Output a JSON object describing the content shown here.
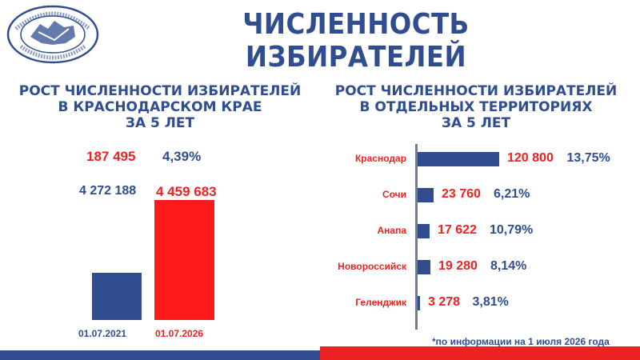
{
  "header": {
    "title": "ЧИСЛЕННОСТЬ ИЗБИРАТЕЛЕЙ",
    "logo_text_top": "ИЗБИРАТЕЛЬНАЯ КОМИССИЯ КРАСНОДАРСКОГО КРАЯ",
    "logo_text_bottom": "РОССИЙСКАЯ ФЕДЕРАЦИЯ"
  },
  "left_panel": {
    "subtitle": [
      "РОСТ ЧИСЛЕННОСТИ ИЗБИРАТЕЛЕЙ",
      "В КРАСНОДАРСКОМ КРАЕ",
      "ЗА 5 ЛЕТ"
    ],
    "growth_value": "187 495",
    "growth_percent": "4,39%",
    "value_2021": "4 272 188",
    "value_2026": "4 459 683",
    "date_2021": "01.07.2021",
    "date_2026": "01.07.2026"
  },
  "right_panel": {
    "subtitle": [
      "РОСТ ЧИСЛЕННОСТИ ИЗБИРАТЕЛЕЙ",
      "В ОТДЕЛЬНЫХ ТЕРРИТОРИЯХ",
      "ЗА 5 ЛЕТ"
    ]
  },
  "footnote": "*по информации на 1 июля 2026 года",
  "colors": {
    "blue": "#2f4d8f",
    "red": "#ee2222"
  },
  "chart_data": [
    {
      "type": "bar",
      "title": "РОСТ ЧИСЛЕННОСТИ ИЗБИРАТЕЛЕЙ В КРАСНОДАРСКОМ КРАЕ ЗА 5 ЛЕТ",
      "categories": [
        "01.07.2021",
        "01.07.2026"
      ],
      "values": [
        4272188,
        4459683
      ],
      "annotation": {
        "growth": 187495,
        "growth_percent": "4,39%"
      }
    },
    {
      "type": "bar",
      "orientation": "horizontal",
      "title": "РОСТ ЧИСЛЕННОСТИ ИЗБИРАТЕЛЕЙ В ОТДЕЛЬНЫХ ТЕРРИТОРИЯХ ЗА 5 ЛЕТ",
      "categories": [
        "Краснодар",
        "Сочи",
        "Анапа",
        "Новороссийск",
        "Геленджик"
      ],
      "values": [
        120800,
        23760,
        17622,
        19280,
        3278
      ],
      "value_labels": [
        "120 800",
        "23 760",
        "17 622",
        "19 280",
        "3 278"
      ],
      "percent_labels": [
        "13,75%",
        "6,21%",
        "10,79%",
        "8,14%",
        "3,81%"
      ]
    }
  ]
}
